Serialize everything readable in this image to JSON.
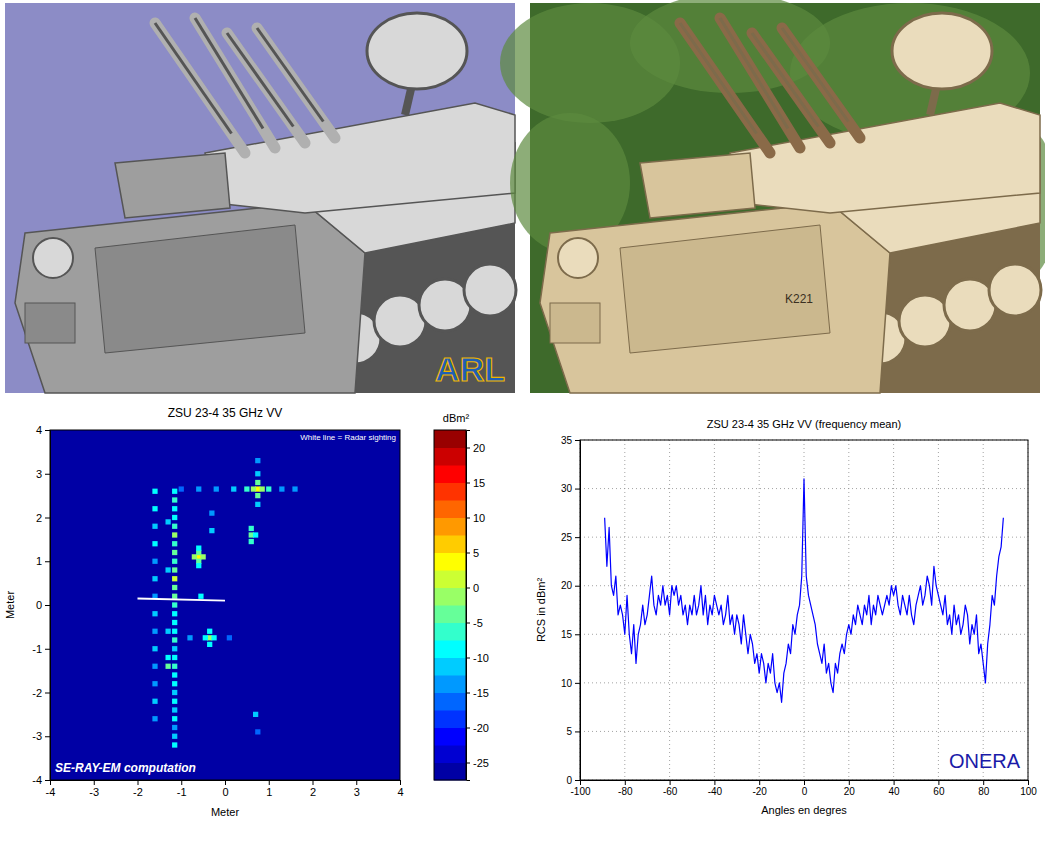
{
  "render": {
    "logo": "ARL"
  },
  "photo": {
    "plate": "K221"
  },
  "chart_data": [
    {
      "type": "heatmap",
      "title": "ZSU 23-4  35 GHz VV",
      "x_label": "Meter",
      "y_label": "Meter",
      "xlim": [
        -4,
        4
      ],
      "ylim": [
        -4,
        4
      ],
      "xticks": [
        -4,
        -3,
        -2,
        -1,
        0,
        1,
        2,
        3,
        4
      ],
      "yticks": [
        -4,
        -3,
        -2,
        -1,
        0,
        1,
        2,
        3,
        4
      ],
      "cell_size": 0.12,
      "cells": [
        [
          -1.15,
          -3.2,
          -8
        ],
        [
          -1.15,
          -3.0,
          -12
        ],
        [
          -1.15,
          -2.8,
          -14
        ],
        [
          -1.15,
          -2.6,
          -10
        ],
        [
          -1.15,
          -2.4,
          -12
        ],
        [
          -1.15,
          -2.2,
          -9
        ],
        [
          -1.15,
          -2.0,
          -11
        ],
        [
          -1.15,
          -1.8,
          -8
        ],
        [
          -1.15,
          -1.6,
          -10
        ],
        [
          -1.15,
          -1.4,
          -6
        ],
        [
          -1.15,
          -1.2,
          -9
        ],
        [
          -1.15,
          -1.0,
          -11
        ],
        [
          -1.15,
          -0.8,
          -7
        ],
        [
          -1.15,
          -0.6,
          -10
        ],
        [
          -1.15,
          -0.4,
          -8
        ],
        [
          -1.15,
          -0.2,
          -9
        ],
        [
          -1.15,
          0.0,
          -6
        ],
        [
          -1.15,
          0.2,
          -5
        ],
        [
          -1.15,
          0.4,
          -3
        ],
        [
          -1.15,
          0.6,
          0
        ],
        [
          -1.15,
          0.8,
          -4
        ],
        [
          -1.15,
          1.0,
          -7
        ],
        [
          -1.15,
          1.2,
          -5
        ],
        [
          -1.15,
          1.4,
          -6
        ],
        [
          -1.15,
          1.6,
          -2
        ],
        [
          -1.15,
          1.8,
          -6
        ],
        [
          -1.15,
          2.0,
          -9
        ],
        [
          -1.15,
          2.2,
          -8
        ],
        [
          -1.15,
          2.4,
          -7
        ],
        [
          -1.15,
          2.6,
          -10
        ],
        [
          -1.6,
          -2.6,
          -14
        ],
        [
          -1.6,
          -2.2,
          -12
        ],
        [
          -1.6,
          -1.8,
          -15
        ],
        [
          -1.6,
          -1.4,
          -13
        ],
        [
          -1.6,
          -1.0,
          -12
        ],
        [
          -1.6,
          -0.6,
          -14
        ],
        [
          -1.6,
          -0.2,
          -11
        ],
        [
          -1.6,
          0.2,
          -13
        ],
        [
          -1.6,
          0.6,
          -12
        ],
        [
          -1.6,
          1.0,
          -14
        ],
        [
          -1.6,
          1.4,
          -10
        ],
        [
          -1.6,
          1.8,
          -12
        ],
        [
          -1.6,
          2.2,
          -9
        ],
        [
          -1.6,
          2.6,
          -8
        ],
        [
          -1.3,
          -1.4,
          -5
        ],
        [
          -1.3,
          -1.2,
          -8
        ],
        [
          -1.3,
          -0.6,
          -12
        ],
        [
          -1.3,
          0.8,
          -12
        ],
        [
          -1.3,
          1.9,
          -11
        ],
        [
          -0.6,
          1.1,
          3
        ],
        [
          -0.7,
          1.1,
          -2
        ],
        [
          -0.5,
          1.1,
          -2
        ],
        [
          -0.6,
          1.0,
          -4
        ],
        [
          -0.6,
          1.2,
          -4
        ],
        [
          -0.6,
          0.9,
          -10
        ],
        [
          -0.6,
          1.3,
          -10
        ],
        [
          0.75,
          2.65,
          4
        ],
        [
          -1.0,
          2.65,
          -16
        ],
        [
          -0.6,
          2.65,
          -15
        ],
        [
          -0.2,
          2.65,
          -14
        ],
        [
          0.2,
          2.65,
          -12
        ],
        [
          0.5,
          2.65,
          -6
        ],
        [
          0.65,
          2.65,
          -1
        ],
        [
          0.85,
          2.65,
          -1
        ],
        [
          1.0,
          2.65,
          -6
        ],
        [
          1.3,
          2.65,
          -13
        ],
        [
          1.6,
          2.65,
          -15
        ],
        [
          0.75,
          2.3,
          -12
        ],
        [
          0.75,
          2.5,
          -5
        ],
        [
          0.75,
          2.8,
          -5
        ],
        [
          0.75,
          3.0,
          -12
        ],
        [
          0.75,
          3.3,
          -15
        ],
        [
          0.6,
          1.6,
          -3
        ],
        [
          0.6,
          1.75,
          -6
        ],
        [
          0.6,
          1.45,
          -7
        ],
        [
          0.7,
          1.6,
          -8
        ],
        [
          -0.35,
          -0.75,
          -2
        ],
        [
          -0.45,
          -0.75,
          -8
        ],
        [
          -0.25,
          -0.75,
          -8
        ],
        [
          -0.35,
          -0.6,
          -9
        ],
        [
          -0.35,
          -0.9,
          -9
        ],
        [
          -0.8,
          -0.75,
          -15
        ],
        [
          0.1,
          -0.75,
          -16
        ],
        [
          -0.55,
          0.2,
          -10
        ],
        [
          0.7,
          -2.5,
          -12
        ],
        [
          0.75,
          -2.9,
          -16
        ],
        [
          -0.3,
          1.7,
          -12
        ],
        [
          -0.3,
          2.1,
          -14
        ]
      ],
      "colorbar": {
        "label": "dBm²",
        "range": [
          -27.5,
          22.5
        ],
        "ticks": [
          -25,
          -20,
          -15,
          -10,
          -5,
          0,
          5,
          10,
          15,
          20
        ]
      },
      "radar_line": {
        "x": [
          -2,
          0
        ],
        "y": [
          0.15,
          0.1
        ]
      },
      "annotations": [
        "White line = Radar sighting",
        "SE-RAY-EM computation"
      ]
    },
    {
      "type": "line",
      "title": "ZSU 23-4  35 GHz VV (frequency mean)",
      "x_label": "Angles en degres",
      "y_label": "RCS in dBm²",
      "xlim": [
        -100,
        100
      ],
      "ylim": [
        0,
        35
      ],
      "xticks": [
        -100,
        -80,
        -60,
        -40,
        -20,
        0,
        20,
        40,
        60,
        80,
        100
      ],
      "yticks": [
        0,
        5,
        10,
        15,
        20,
        25,
        30,
        35
      ],
      "grid": true,
      "annotations": [
        "ONERA"
      ],
      "x": [
        -89,
        -88,
        -87,
        -86,
        -85,
        -84,
        -83,
        -82,
        -81,
        -80,
        -79,
        -78,
        -77,
        -76,
        -75,
        -74,
        -73,
        -72,
        -71,
        -70,
        -69,
        -68,
        -67,
        -66,
        -65,
        -64,
        -63,
        -62,
        -61,
        -60,
        -59,
        -58,
        -57,
        -56,
        -55,
        -54,
        -53,
        -52,
        -51,
        -50,
        -49,
        -48,
        -47,
        -46,
        -45,
        -44,
        -43,
        -42,
        -41,
        -40,
        -39,
        -38,
        -37,
        -36,
        -35,
        -34,
        -33,
        -32,
        -31,
        -30,
        -29,
        -28,
        -27,
        -26,
        -25,
        -24,
        -23,
        -22,
        -21,
        -20,
        -19,
        -18,
        -17,
        -16,
        -15,
        -14,
        -13,
        -12,
        -11,
        -10,
        -9,
        -8,
        -7,
        -6,
        -5,
        -4,
        -3,
        -2,
        -1,
        0,
        1,
        2,
        3,
        4,
        5,
        6,
        7,
        8,
        9,
        10,
        11,
        12,
        13,
        14,
        15,
        16,
        17,
        18,
        19,
        20,
        21,
        22,
        23,
        24,
        25,
        26,
        27,
        28,
        29,
        30,
        31,
        32,
        33,
        34,
        35,
        36,
        37,
        38,
        39,
        40,
        41,
        42,
        43,
        44,
        45,
        46,
        47,
        48,
        49,
        50,
        51,
        52,
        53,
        54,
        55,
        56,
        57,
        58,
        59,
        60,
        61,
        62,
        63,
        64,
        65,
        66,
        67,
        68,
        69,
        70,
        71,
        72,
        73,
        74,
        75,
        76,
        77,
        78,
        79,
        80,
        81,
        82,
        83,
        84,
        85,
        86,
        87,
        88,
        89
      ],
      "series": [
        {
          "color": "#0000ff",
          "values": [
            27,
            22,
            26,
            20,
            19,
            21,
            17,
            18,
            17,
            15,
            19,
            15,
            13,
            16,
            12,
            15,
            16,
            18,
            16,
            17,
            19,
            21,
            18,
            17,
            19,
            18,
            20,
            18,
            19,
            17,
            20,
            19,
            20,
            18,
            19,
            17,
            18,
            16,
            18,
            17,
            19,
            17,
            18,
            20,
            17,
            19,
            16,
            18,
            17,
            19,
            18,
            17,
            18,
            16,
            17,
            19,
            16,
            17,
            15,
            17,
            16,
            14,
            17,
            15,
            13,
            15,
            14,
            12,
            13,
            11,
            13,
            12,
            10,
            12,
            11,
            13,
            10,
            9,
            10,
            8,
            11,
            12,
            14,
            13,
            16,
            15,
            17,
            18,
            21,
            31,
            21,
            19,
            18,
            17,
            16,
            14,
            13,
            12,
            14,
            11,
            12,
            10,
            9,
            12,
            11,
            13,
            14,
            13,
            15,
            16,
            15,
            17,
            16,
            18,
            17,
            16,
            18,
            17,
            19,
            16,
            18,
            17,
            19,
            18,
            17,
            18,
            19,
            18,
            20,
            19,
            20,
            18,
            17,
            19,
            18,
            17,
            19,
            17,
            16,
            18,
            19,
            20,
            18,
            19,
            21,
            20,
            18,
            22,
            20,
            19,
            18,
            17,
            19,
            16,
            17,
            15,
            18,
            16,
            17,
            15,
            16,
            18,
            17,
            14,
            16,
            15,
            17,
            13,
            14,
            12,
            10,
            14,
            16,
            19,
            18,
            21,
            23,
            24,
            27
          ]
        }
      ]
    }
  ]
}
